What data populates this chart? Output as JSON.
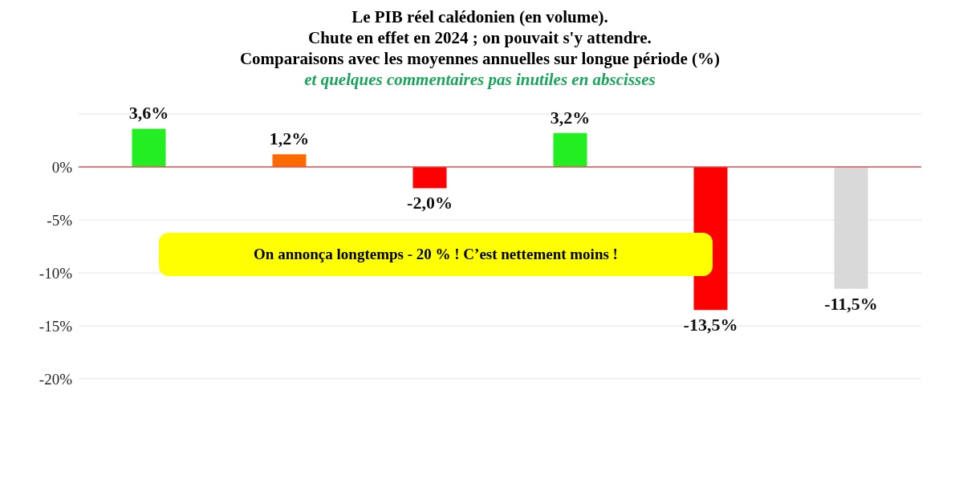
{
  "chart_data": {
    "type": "bar",
    "title": "Le PIB réel calédonien (en volume).\nChute en effet en 2024 ; on pouvait s'y attendre.\nComparaisons avec les moyennes annuelles sur longue période (%)",
    "subtitle": "et quelques commentaires pas inutiles en abscisses",
    "categories": [
      null,
      null,
      null,
      null,
      null,
      null
    ],
    "values": [
      3.6,
      1.2,
      -2.0,
      3.2,
      -13.5,
      -11.5
    ],
    "colors": [
      "#22ee22",
      "#ff6a00",
      "#ff0000",
      "#22ee22",
      "#ff0000",
      "#d9d9d9"
    ],
    "value_labels": [
      "3,6%",
      "1,2%",
      "-2,0%",
      "3,2%",
      "-13,5%",
      "-11,5%"
    ],
    "ylim": [
      -20,
      5
    ],
    "yticks": [
      {
        "value": -20,
        "label": "-20%"
      },
      {
        "value": -15,
        "label": "-15%"
      },
      {
        "value": -10,
        "label": "-10%"
      },
      {
        "value": -5,
        "label": "-5%"
      },
      {
        "value": 0,
        "label": "0%"
      }
    ],
    "grid": "y",
    "ref_lines": [
      {
        "axis": "y",
        "value": 0,
        "color": "#e05050"
      }
    ],
    "annotations": [
      "On annonça longtemps  - 20 % ! C’est nettement moins !"
    ]
  }
}
